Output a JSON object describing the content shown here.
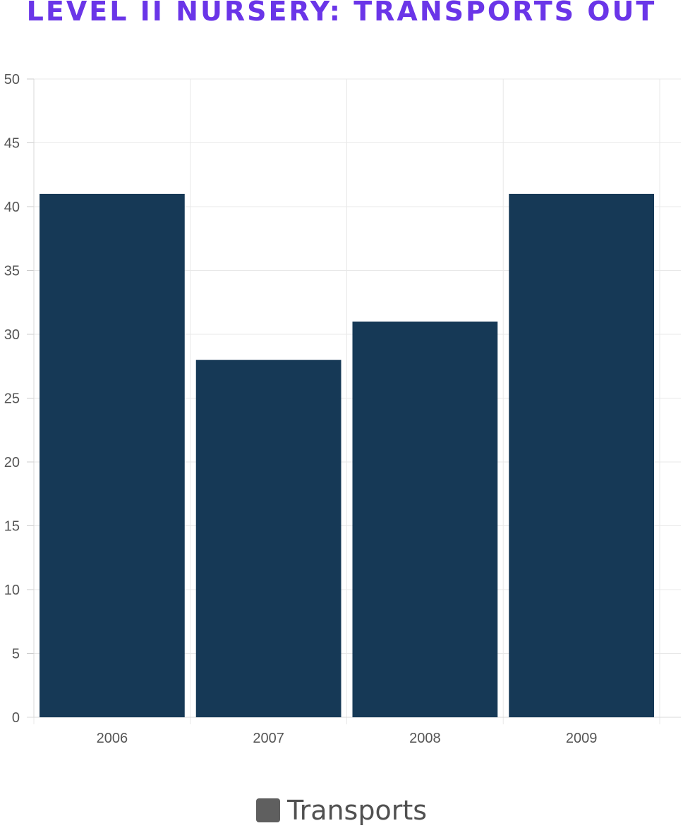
{
  "chart_data": {
    "type": "bar",
    "title": "LEVEL II NURSERY: TRANSPORTS OUT",
    "categories": [
      "2006",
      "2007",
      "2008",
      "2009"
    ],
    "series": [
      {
        "name": "Transports",
        "values": [
          41,
          28,
          31,
          41
        ]
      }
    ],
    "ylim": [
      0,
      50
    ],
    "yticks": [
      0,
      5,
      10,
      15,
      20,
      25,
      30,
      35,
      40,
      45,
      50
    ],
    "grid": true,
    "legend_position": "bottom",
    "colors": {
      "title": "#6a35e8",
      "bar": "#163956",
      "legend_swatch": "#5f5f5f",
      "grid": "#e8e8e8",
      "tick_text": "#555555"
    }
  }
}
